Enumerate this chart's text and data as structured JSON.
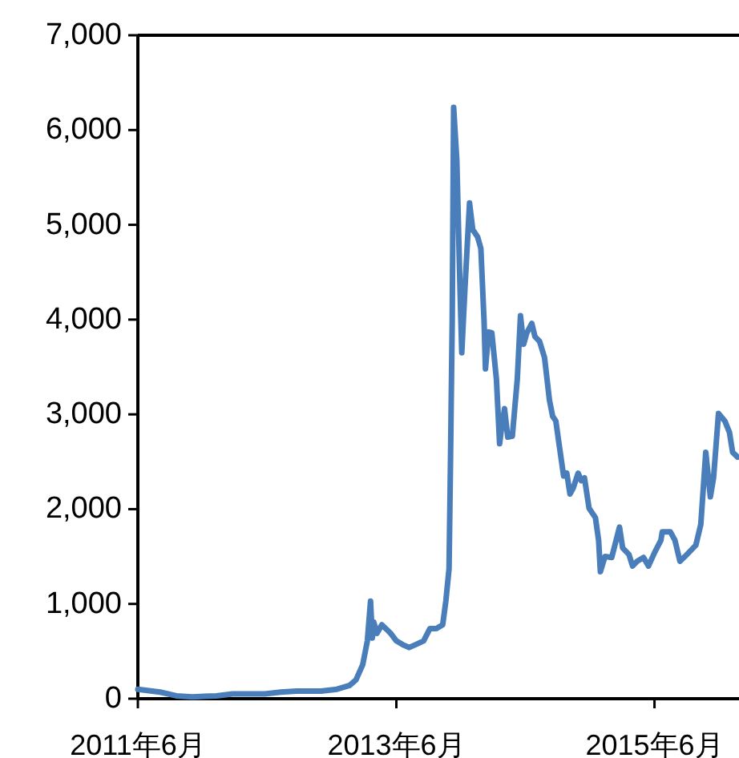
{
  "chart_data": {
    "type": "line",
    "color": "#4a7ebb",
    "x": [
      "2011-06-01",
      "2011-08-03",
      "2011-09-18",
      "2011-11-02",
      "2012-01-09",
      "2012-02-24",
      "2012-05-25",
      "2012-07-09",
      "2012-08-23",
      "2012-10-31",
      "2012-12-15",
      "2013-01-20",
      "2013-02-07",
      "2013-02-26",
      "2013-03-11",
      "2013-03-20",
      "2013-03-25",
      "2013-03-29",
      "2013-04-07",
      "2013-04-21",
      "2013-05-05",
      "2013-05-18",
      "2013-06-01",
      "2013-06-19",
      "2013-07-07",
      "2013-07-25",
      "2013-08-17",
      "2013-09-04",
      "2013-09-22",
      "2013-10-10",
      "2013-10-19",
      "2013-10-28",
      "2013-11-01",
      "2013-11-06",
      "2013-11-10",
      "2013-11-19",
      "2013-11-28",
      "2013-12-03",
      "2013-12-12",
      "2013-12-25",
      "2014-01-03",
      "2014-01-17",
      "2014-01-26",
      "2014-02-04",
      "2014-02-08",
      "2014-02-17",
      "2014-02-26",
      "2014-03-11",
      "2014-03-20",
      "2014-03-25",
      "2014-04-03",
      "2014-04-12",
      "2014-04-25",
      "2014-05-09",
      "2014-05-18",
      "2014-05-27",
      "2014-06-05",
      "2014-06-19",
      "2014-06-28",
      "2014-07-11",
      "2014-07-25",
      "2014-08-08",
      "2014-08-17",
      "2014-08-26",
      "2014-09-04",
      "2014-09-17",
      "2014-09-26",
      "2014-10-05",
      "2014-10-14",
      "2014-10-28",
      "2014-11-06",
      "2014-11-15",
      "2014-11-28",
      "2014-12-16",
      "2014-12-25",
      "2014-12-30",
      "2015-01-12",
      "2015-01-31",
      "2015-02-09",
      "2015-02-22",
      "2015-03-03",
      "2015-03-21",
      "2015-03-31",
      "2015-04-13",
      "2015-05-01",
      "2015-05-15",
      "2015-06-01",
      "2015-06-19",
      "2015-06-23",
      "2015-07-16",
      "2015-07-29",
      "2015-08-12",
      "2015-08-26",
      "2015-09-13",
      "2015-09-26",
      "2015-10-10",
      "2015-10-24",
      "2015-11-06",
      "2015-11-15",
      "2015-11-29",
      "2015-12-17",
      "2015-12-30",
      "2016-01-08",
      "2016-01-22"
    ],
    "values": [
      100,
      70,
      30,
      20,
      30,
      50,
      50,
      70,
      80,
      80,
      100,
      140,
      200,
      360,
      610,
      1030,
      640,
      810,
      690,
      780,
      730,
      680,
      610,
      570,
      540,
      570,
      610,
      740,
      740,
      780,
      1030,
      1370,
      2470,
      3990,
      6240,
      5680,
      4330,
      3650,
      4330,
      5230,
      4950,
      4870,
      4750,
      3990,
      3480,
      3870,
      3860,
      3370,
      2690,
      2840,
      3060,
      2760,
      2770,
      3370,
      4040,
      3740,
      3860,
      3960,
      3820,
      3770,
      3600,
      3150,
      2980,
      2930,
      2690,
      2350,
      2380,
      2160,
      2220,
      2380,
      2300,
      2330,
      2010,
      1910,
      1670,
      1340,
      1500,
      1490,
      1620,
      1810,
      1590,
      1520,
      1400,
      1450,
      1490,
      1400,
      1540,
      1670,
      1760,
      1760,
      1670,
      1450,
      1500,
      1570,
      1620,
      1840,
      2600,
      2130,
      2330,
      3010,
      2930,
      2810,
      2600,
      2550
    ],
    "xlim": [
      "2011-06-01",
      "2016-01-26"
    ],
    "xticks": [
      {
        "value": "2011-06",
        "label": "2011年6月"
      },
      {
        "value": "2013-06",
        "label": "2013年6月"
      },
      {
        "value": "2015-06",
        "label": "2015年6月"
      }
    ],
    "ylim": [
      0,
      7000
    ],
    "yticks": [
      0,
      {
        "value": 1000,
        "label": "1,000"
      },
      {
        "value": 2000,
        "label": "2,000"
      },
      {
        "value": 3000,
        "label": "3,000"
      },
      {
        "value": 4000,
        "label": "4,000"
      },
      {
        "value": 5000,
        "label": "5,000"
      },
      {
        "value": 6000,
        "label": "6,000"
      },
      {
        "value": 7000,
        "label": "7,000"
      }
    ]
  }
}
